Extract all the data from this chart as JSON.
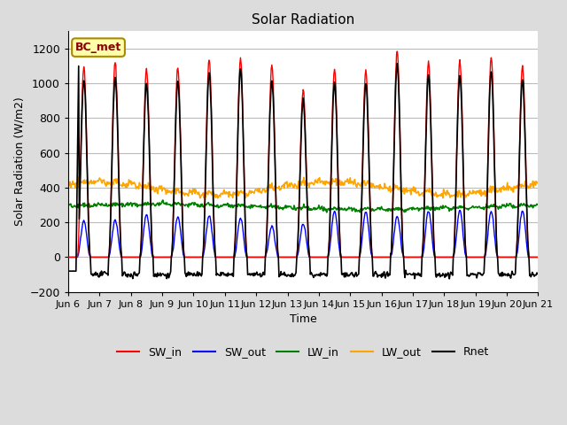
{
  "title": "Solar Radiation",
  "xlabel": "Time",
  "ylabel": "Solar Radiation (W/m2)",
  "ylim": [
    -200,
    1300
  ],
  "yticks": [
    -200,
    0,
    200,
    400,
    600,
    800,
    1000,
    1200
  ],
  "x_labels": [
    "Jun 6",
    "Jun 7",
    "Jun 8",
    "Jun 9",
    "Jun 10",
    "Jun 11",
    "Jun 12",
    "Jun 13",
    "Jun 14",
    "Jun 15",
    "Jun 16",
    "Jun 17",
    "Jun 18",
    "Jun 19",
    "Jun 20",
    "Jun 21"
  ],
  "legend_labels": [
    "SW_in",
    "SW_out",
    "LW_in",
    "LW_out",
    "Rnet"
  ],
  "legend_colors": [
    "red",
    "blue",
    "green",
    "orange",
    "black"
  ],
  "station_label": "BC_met",
  "station_box_color": "#FFFFAA",
  "station_box_edge": "#AA8800",
  "colors": {
    "SW_in": "red",
    "SW_out": "blue",
    "LW_in": "green",
    "LW_out": "orange",
    "Rnet": "black"
  },
  "background_color": "#DCDCDC",
  "plot_bg_color": "#FFFFFF",
  "grid_color": "#BBBBBB"
}
